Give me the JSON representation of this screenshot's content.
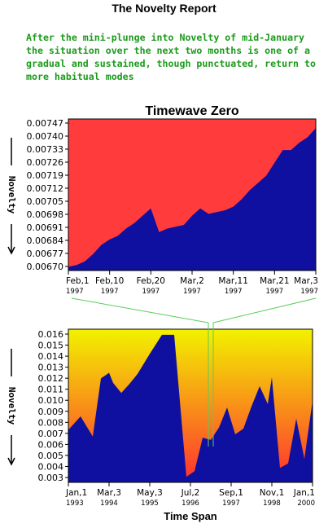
{
  "report_title": "The Novelty Report",
  "intro_text": "After the mini-plunge into Novelty of mid-January the situation over the next two months is one of a gradual and sustained, though punctuated,  return to more habitual modes",
  "colors": {
    "fill": "#1010a0",
    "top_bg": "#ff3b3b",
    "grad_top": "#f2f200",
    "grad_bottom": "#ff3030",
    "connector": "#5acd5a",
    "text_green": "#1a9a1a"
  },
  "chart_data": [
    {
      "type": "area",
      "title": "Timewave Zero",
      "ylabel": "Novelty",
      "xlabel": "",
      "ylim": [
        0.00667,
        0.0075
      ],
      "yticks": [
        "0.00747",
        "0.00740",
        "0.00733",
        "0.00726",
        "0.00719",
        "0.00712",
        "0.00705",
        "0.00698",
        "0.00691",
        "0.00684",
        "0.00677",
        "0.00670"
      ],
      "xticks": [
        {
          "label": "Feb,1",
          "year": "1997"
        },
        {
          "label": "Feb,10",
          "year": "1997"
        },
        {
          "label": "Feb,20",
          "year": "1997"
        },
        {
          "label": "Mar,2",
          "year": "1997"
        },
        {
          "label": "Mar,11",
          "year": "1997"
        },
        {
          "label": "Mar,21",
          "year": "1997"
        },
        {
          "label": "Mar,3",
          "year": "1997"
        }
      ],
      "x": [
        0,
        2,
        4,
        6,
        8,
        10,
        12,
        14,
        16,
        18,
        20,
        22,
        24,
        26,
        28,
        30,
        32,
        34,
        36,
        38,
        40,
        42,
        44,
        46,
        48,
        50,
        52,
        54,
        56,
        58,
        60
      ],
      "values": [
        0.00669,
        0.0067,
        0.00672,
        0.00676,
        0.00681,
        0.00684,
        0.00686,
        0.0069,
        0.00693,
        0.00697,
        0.00701,
        0.00688,
        0.0069,
        0.00691,
        0.00692,
        0.00697,
        0.00701,
        0.00698,
        0.00699,
        0.007,
        0.00702,
        0.00706,
        0.00711,
        0.00715,
        0.00719,
        0.00726,
        0.00733,
        0.00733,
        0.00737,
        0.0074,
        0.00745
      ]
    },
    {
      "type": "area",
      "title": "",
      "ylabel": "Novelty",
      "xlabel": "Time Span",
      "ylim": [
        0.0025,
        0.0162
      ],
      "yticks": [
        "0.016",
        "0.015",
        "0.014",
        "0.013",
        "0.012",
        "0.011",
        "0.010",
        "0.009",
        "0.008",
        "0.007",
        "0.006",
        "0.005",
        "0.004",
        "0.003"
      ],
      "xticks": [
        {
          "label": "Jan,1",
          "year": "1993"
        },
        {
          "label": "Mar,3",
          "year": "1994"
        },
        {
          "label": "May,3",
          "year": "1995"
        },
        {
          "label": "Jul,2",
          "year": "1996"
        },
        {
          "label": "Sep,1",
          "year": "1997"
        },
        {
          "label": "Nov,1",
          "year": "1998"
        },
        {
          "label": "Jan,1",
          "year": "2000"
        }
      ],
      "x": [
        0,
        0.3,
        0.6,
        0.8,
        1.0,
        1.1,
        1.3,
        1.5,
        1.7,
        2.0,
        2.3,
        2.6,
        2.9,
        3.1,
        3.3,
        3.5,
        3.7,
        3.9,
        4.1,
        4.3,
        4.5,
        4.7,
        4.9,
        5.0,
        5.2,
        5.4,
        5.6,
        5.8,
        6.0
      ],
      "values": [
        0.0072,
        0.0084,
        0.0066,
        0.0118,
        0.0123,
        0.0114,
        0.0105,
        0.0113,
        0.0122,
        0.014,
        0.0157,
        0.0157,
        0.003,
        0.0035,
        0.0065,
        0.0063,
        0.0074,
        0.0092,
        0.0068,
        0.0073,
        0.0093,
        0.0111,
        0.0095,
        0.0119,
        0.0038,
        0.0042,
        0.0082,
        0.0046,
        0.0098
      ]
    }
  ]
}
